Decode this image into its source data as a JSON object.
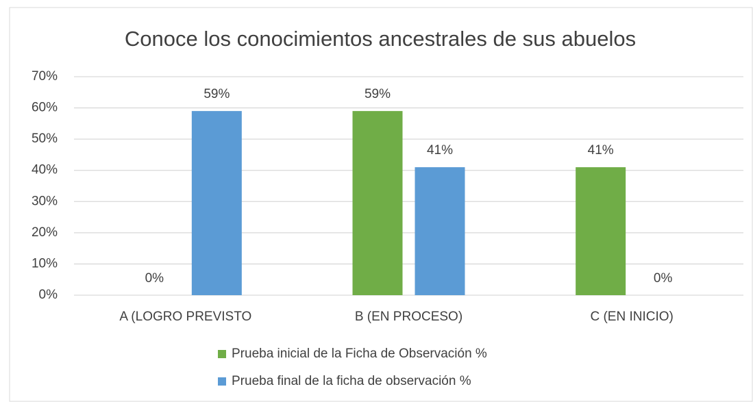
{
  "chart_data": {
    "type": "bar",
    "title": "Conoce los conocimientos ancestrales de sus abuelos",
    "categories": [
      "A (LOGRO PREVISTO",
      "B (EN PROCESO)",
      "C (EN INICIO)"
    ],
    "series": [
      {
        "name": "Prueba inicial de la Ficha de Observación %",
        "color": "#70ad47",
        "values": [
          0,
          59,
          41
        ],
        "value_labels": [
          "0%",
          "59%",
          "41%"
        ]
      },
      {
        "name": "Prueba final de la ficha de observación %",
        "color": "#5b9bd5",
        "values": [
          59,
          41,
          0
        ],
        "value_labels": [
          "59%",
          "41%",
          "0%"
        ]
      }
    ],
    "ylim": [
      0,
      70
    ],
    "yticks": [
      {
        "value": 0,
        "label": "0%"
      },
      {
        "value": 10,
        "label": "10%"
      },
      {
        "value": 20,
        "label": "20%"
      },
      {
        "value": 30,
        "label": "30%"
      },
      {
        "value": 40,
        "label": "40%"
      },
      {
        "value": 50,
        "label": "50%"
      },
      {
        "value": 60,
        "label": "60%"
      },
      {
        "value": 70,
        "label": "70%"
      }
    ],
    "grid": true,
    "legend": "bottom"
  }
}
